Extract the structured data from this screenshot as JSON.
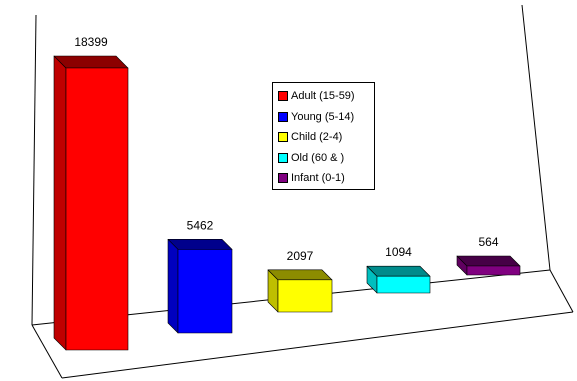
{
  "chart_data": {
    "type": "bar",
    "categories": [
      "Adult (15-59)",
      "Young (5-14)",
      "Child (2-4)",
      "Old (60 & )",
      "Infant (0-1)"
    ],
    "values": [
      18399,
      5462,
      2097,
      1094,
      564
    ],
    "colors": [
      "#ff0000",
      "#0000ff",
      "#ffff00",
      "#00ffff",
      "#800080"
    ],
    "value_labels": [
      "18399",
      "5462",
      "2097",
      "1094",
      "564"
    ],
    "title": "",
    "xlabel": "",
    "ylabel": "",
    "grid": false,
    "legend_position": "center-top",
    "style": "3d"
  }
}
